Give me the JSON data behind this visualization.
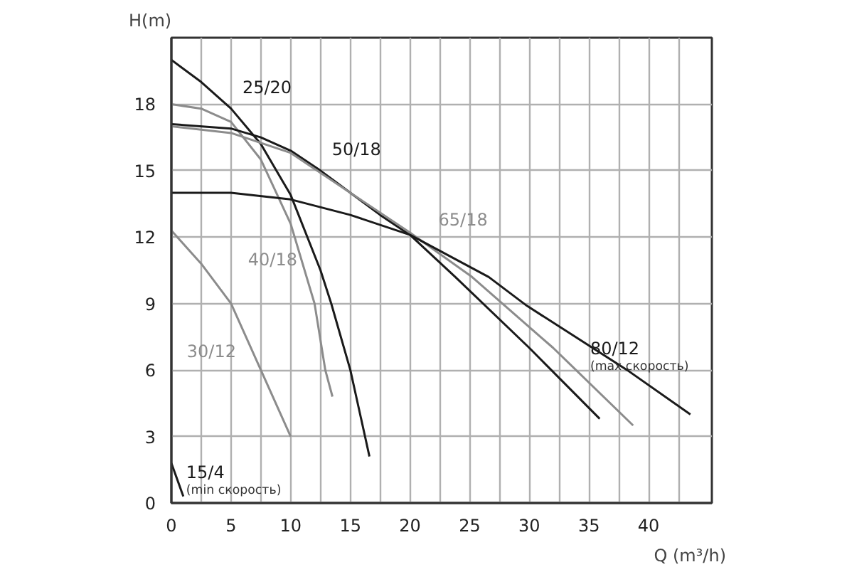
{
  "chart_data": {
    "type": "line",
    "xlabel": "Q (m³/h)",
    "ylabel": "H(m)",
    "xlim": [
      0,
      45.3
    ],
    "ylim": [
      0,
      21
    ],
    "xticks": [
      0,
      {
        "value": 2.5,
        "label": null
      },
      5,
      {
        "value": 7.5,
        "label": null
      },
      10,
      {
        "value": 12.5,
        "label": null
      },
      15,
      {
        "value": 17.5,
        "label": null
      },
      20,
      {
        "value": 22.5,
        "label": null
      },
      25,
      {
        "value": 27.5,
        "label": null
      },
      30,
      {
        "value": 32.5,
        "label": null
      },
      35,
      {
        "value": 37.5,
        "label": null
      },
      40,
      {
        "value": 42.5,
        "label": null
      }
    ],
    "yticks": [
      0,
      3,
      6,
      9,
      12,
      15,
      18
    ],
    "grid": true,
    "marker": "none",
    "line_style": "solid",
    "series": [
      {
        "name": "25/20",
        "color": "#1a1a1a",
        "x": [
          0,
          2.5,
          5,
          7.5,
          10,
          12.5,
          13.4,
          15,
          16.6
        ],
        "values": [
          20,
          19,
          17.8,
          16.2,
          13.9,
          10.5,
          9,
          6,
          2.1
        ]
      },
      {
        "name": "40/18",
        "color": "#8c8c8c",
        "x": [
          0,
          2.5,
          5,
          7.5,
          10,
          12,
          12.9,
          13.5
        ],
        "values": [
          18,
          17.8,
          17.2,
          15.5,
          12.6,
          9,
          6,
          4.8
        ]
      },
      {
        "name": "30/12",
        "color": "#8c8c8c",
        "x": [
          0,
          2.5,
          5,
          7.5,
          10
        ],
        "values": [
          12.3,
          10.8,
          9,
          6,
          3
        ]
      },
      {
        "name": "15/4",
        "color": "#1a1a1a",
        "x": [
          0,
          1
        ],
        "values": [
          1.8,
          0.3
        ]
      },
      {
        "name": "50/18",
        "color": "#1a1a1a",
        "x": [
          0,
          5,
          7.5,
          10,
          12.5,
          15,
          17.5,
          20,
          23.8,
          30,
          35.9
        ],
        "values": [
          17.1,
          16.9,
          16.5,
          15.9,
          15,
          14,
          13,
          12.1,
          10.2,
          7,
          3.8
        ]
      },
      {
        "name": "65/18",
        "color": "#8c8c8c",
        "x": [
          0,
          5,
          10,
          15,
          20,
          25.2,
          32,
          38.7
        ],
        "values": [
          17,
          16.7,
          15.8,
          14,
          12.2,
          10.2,
          7,
          3.5
        ]
      },
      {
        "name": "80/12",
        "color": "#1a1a1a",
        "x": [
          0,
          5,
          10,
          15,
          20,
          26.6,
          29.8,
          38.2,
          43.5
        ],
        "values": [
          14,
          14,
          13.7,
          13,
          12.1,
          10.2,
          8.9,
          6,
          4
        ]
      }
    ],
    "annotations": [
      "(min скорость)",
      "(max скорость)"
    ]
  }
}
